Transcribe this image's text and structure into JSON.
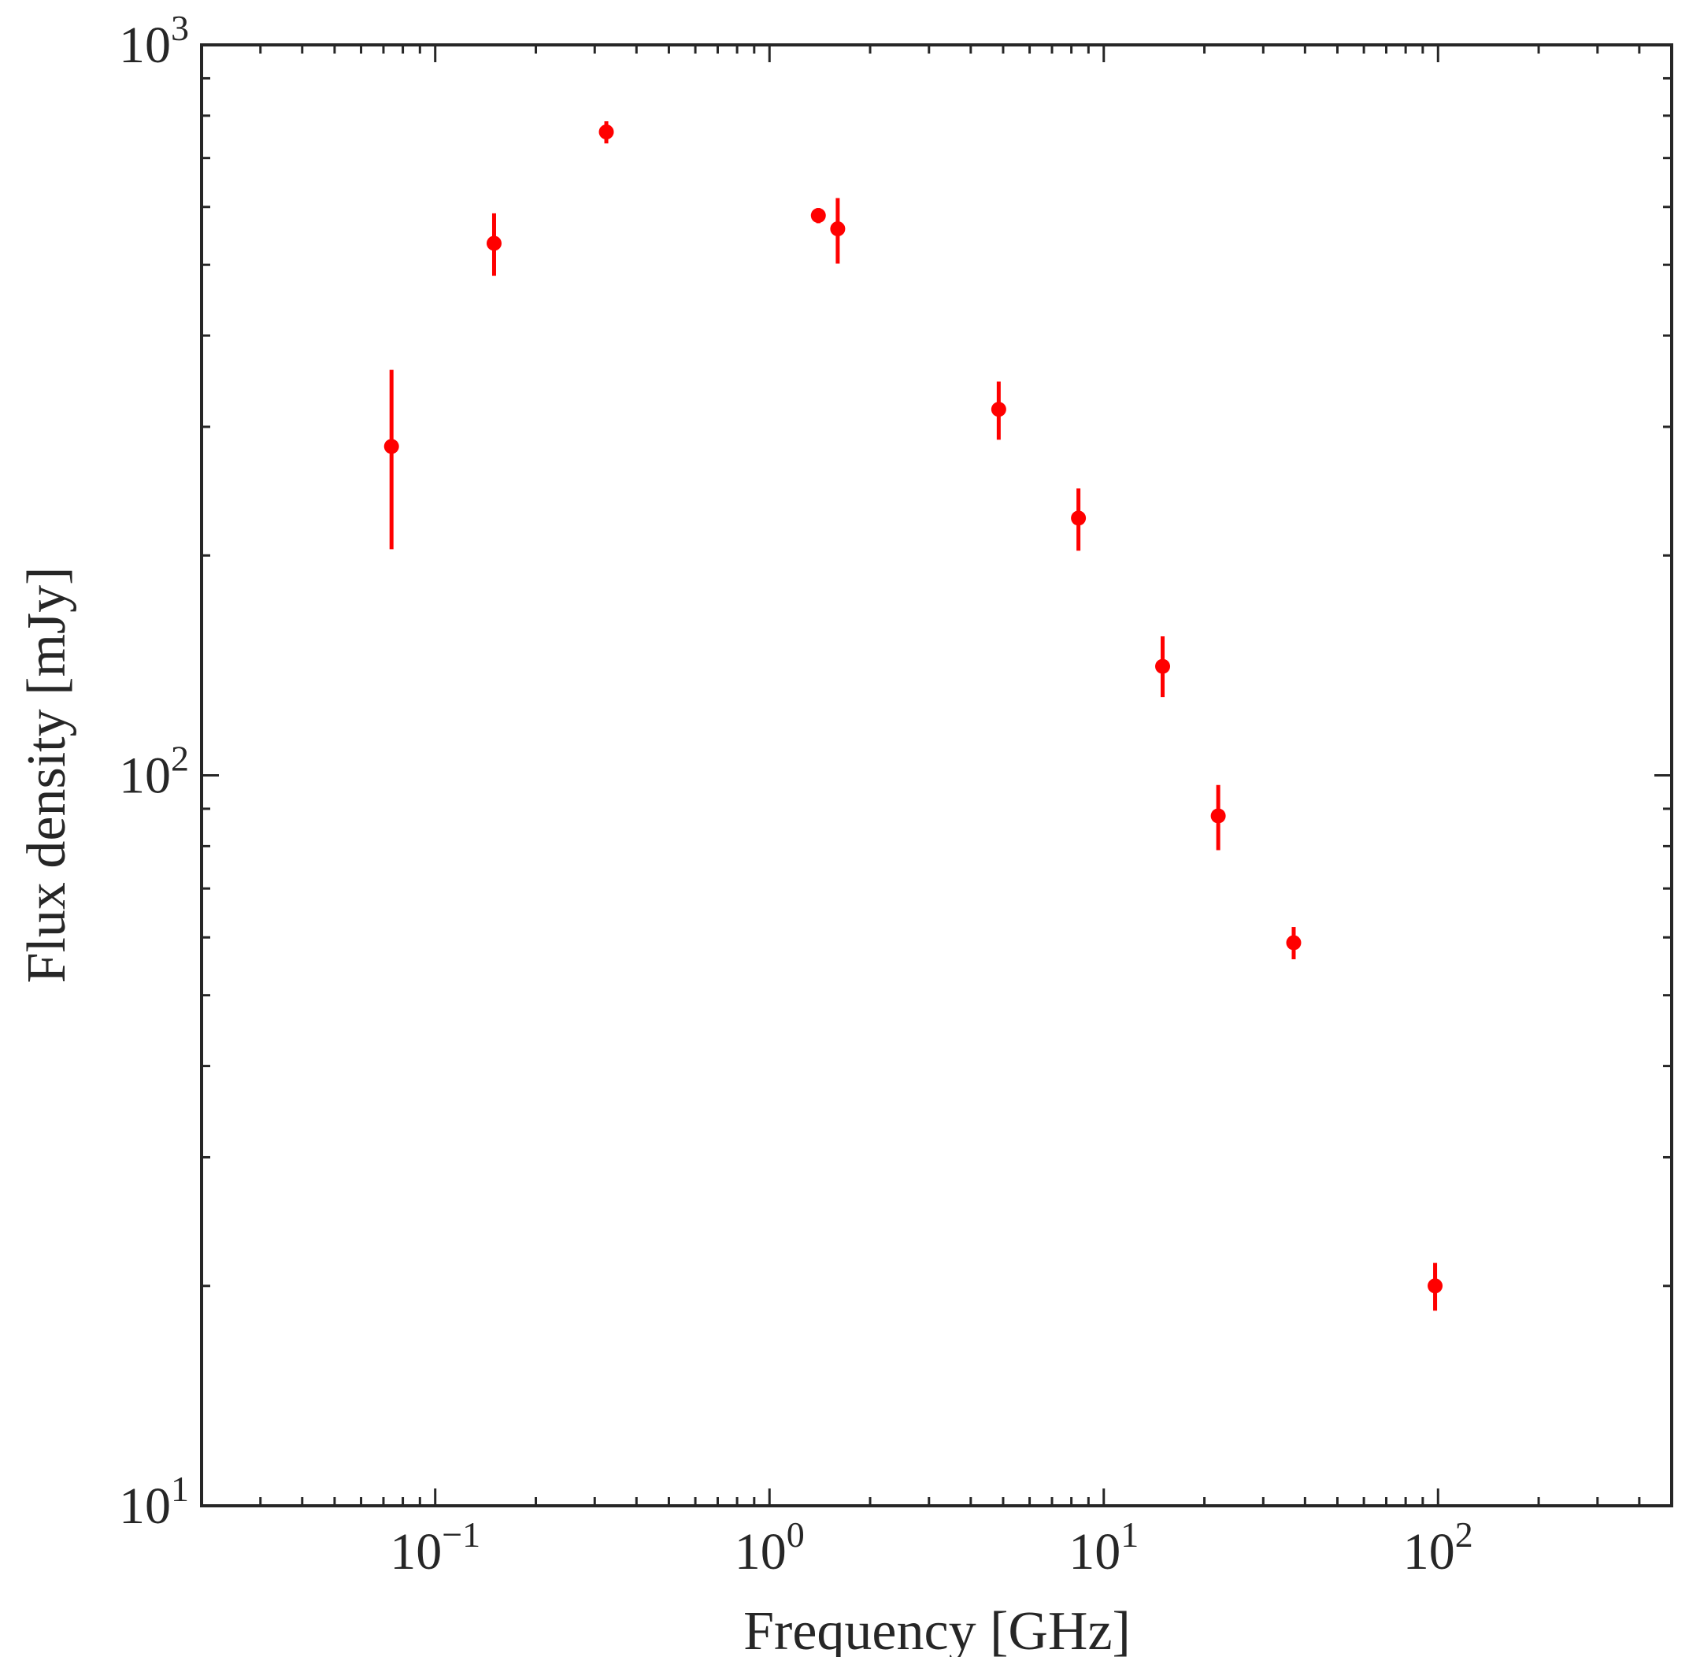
{
  "chart_data": {
    "type": "scatter",
    "title": "",
    "xlabel": "Frequency [GHz]",
    "ylabel": "Flux density [mJy]",
    "xscale": "log",
    "yscale": "log",
    "xlim": [
      0.02,
      500
    ],
    "ylim": [
      10,
      1000
    ],
    "grid": false,
    "x_ticks": [
      {
        "value": 0.1,
        "base": "10",
        "exp": "−1"
      },
      {
        "value": 1,
        "base": "10",
        "exp": "0"
      },
      {
        "value": 10,
        "base": "10",
        "exp": "1"
      },
      {
        "value": 100,
        "base": "10",
        "exp": "2"
      }
    ],
    "y_ticks": [
      {
        "value": 10,
        "base": "10",
        "exp": "1"
      },
      {
        "value": 100,
        "base": "10",
        "exp": "2"
      },
      {
        "value": 1000,
        "base": "10",
        "exp": "3"
      }
    ],
    "series": [
      {
        "name": "flux",
        "color": "#ff0000",
        "points": [
          {
            "x": 0.074,
            "y": 282,
            "ylo": 204,
            "yhi": 359
          },
          {
            "x": 0.15,
            "y": 535,
            "ylo": 483,
            "yhi": 588
          },
          {
            "x": 0.325,
            "y": 760,
            "ylo": 733,
            "yhi": 786
          },
          {
            "x": 1.4,
            "y": 584,
            "ylo": 570,
            "yhi": 598
          },
          {
            "x": 1.6,
            "y": 560,
            "ylo": 502,
            "yhi": 617
          },
          {
            "x": 4.85,
            "y": 317,
            "ylo": 288,
            "yhi": 346
          },
          {
            "x": 8.4,
            "y": 225,
            "ylo": 203,
            "yhi": 247
          },
          {
            "x": 15,
            "y": 141,
            "ylo": 128,
            "yhi": 155
          },
          {
            "x": 22,
            "y": 88,
            "ylo": 79,
            "yhi": 97
          },
          {
            "x": 37,
            "y": 59,
            "ylo": 56,
            "yhi": 62
          },
          {
            "x": 98,
            "y": 20,
            "ylo": 18.5,
            "yhi": 21.5
          }
        ]
      }
    ]
  }
}
